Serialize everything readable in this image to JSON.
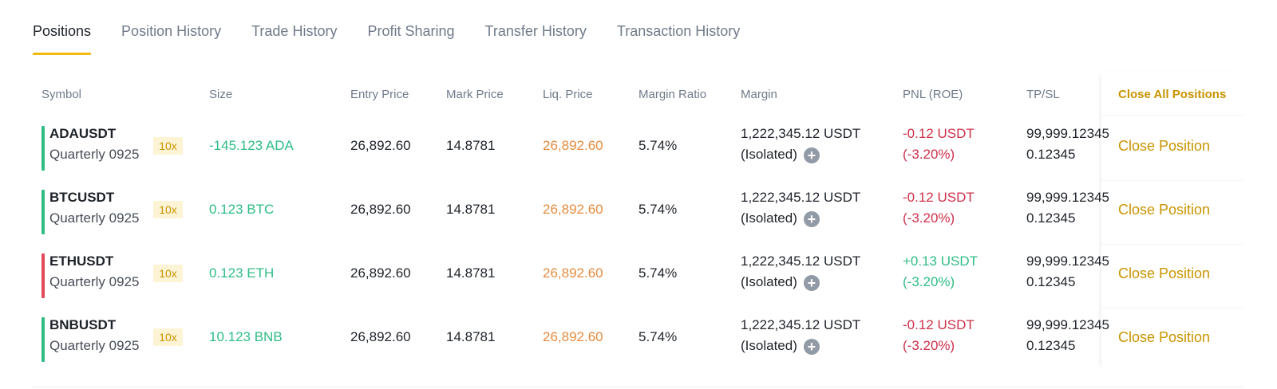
{
  "tabs": [
    {
      "label": "Positions",
      "active": true
    },
    {
      "label": "Position History",
      "active": false
    },
    {
      "label": "Trade History",
      "active": false
    },
    {
      "label": "Profit Sharing",
      "active": false
    },
    {
      "label": "Transfer History",
      "active": false
    },
    {
      "label": "Transaction History",
      "active": false
    }
  ],
  "columns": {
    "symbol": "Symbol",
    "size": "Size",
    "entry_price": "Entry Price",
    "mark_price": "Mark Price",
    "liq_price": "Liq. Price",
    "margin_ratio": "Margin Ratio",
    "margin": "Margin",
    "pnl": "PNL (ROE)",
    "tpsl": "TP/SL",
    "close_all": "Close All Positions"
  },
  "colors": {
    "accent": "#f0b90b",
    "accent_text": "#c99400",
    "buy": "#2ebd85",
    "sell": "#cf304a",
    "liq": "#e58b3d"
  },
  "positions": [
    {
      "symbol": "ADAUSDT",
      "contract": "Quarterly 0925",
      "leverage": "10x",
      "side": "long",
      "size": "-145.123 ADA",
      "entry_price": "26,892.60",
      "mark_price": "14.8781",
      "liq_price": "26,892.60",
      "margin_ratio": "5.74%",
      "margin": "1,222,345.12 USDT",
      "margin_mode": "(Isolated)",
      "pnl": "-0.12 USDT",
      "roe": "(-3.20%)",
      "pnl_sign": "negative",
      "tp": "99,999.12345",
      "sl": "0.12345",
      "close_label": "Close Position"
    },
    {
      "symbol": "BTCUSDT",
      "contract": "Quarterly 0925",
      "leverage": "10x",
      "side": "long",
      "size": "0.123 BTC",
      "entry_price": "26,892.60",
      "mark_price": "14.8781",
      "liq_price": "26,892.60",
      "margin_ratio": "5.74%",
      "margin": "1,222,345.12 USDT",
      "margin_mode": "(Isolated)",
      "pnl": "-0.12 USDT",
      "roe": "(-3.20%)",
      "pnl_sign": "negative",
      "tp": "99,999.12345",
      "sl": "0.12345",
      "close_label": "Close Position"
    },
    {
      "symbol": "ETHUSDT",
      "contract": "Quarterly 0925",
      "leverage": "10x",
      "side": "short",
      "size": "0.123 ETH",
      "entry_price": "26,892.60",
      "mark_price": "14.8781",
      "liq_price": "26,892.60",
      "margin_ratio": "5.74%",
      "margin": "1,222,345.12 USDT",
      "margin_mode": "(Isolated)",
      "pnl": "+0.13 USDT",
      "roe": "(-3.20%)",
      "pnl_sign": "positive",
      "tp": "99,999.12345",
      "sl": "0.12345",
      "close_label": "Close Position"
    },
    {
      "symbol": "BNBUSDT",
      "contract": "Quarterly 0925",
      "leverage": "10x",
      "side": "long",
      "size": "10.123 BNB",
      "entry_price": "26,892.60",
      "mark_price": "14.8781",
      "liq_price": "26,892.60",
      "margin_ratio": "5.74%",
      "margin": "1,222,345.12 USDT",
      "margin_mode": "(Isolated)",
      "pnl": "-0.12 USDT",
      "roe": "(-3.20%)",
      "pnl_sign": "negative",
      "tp": "99,999.12345",
      "sl": "0.12345",
      "close_label": "Close Position"
    }
  ]
}
